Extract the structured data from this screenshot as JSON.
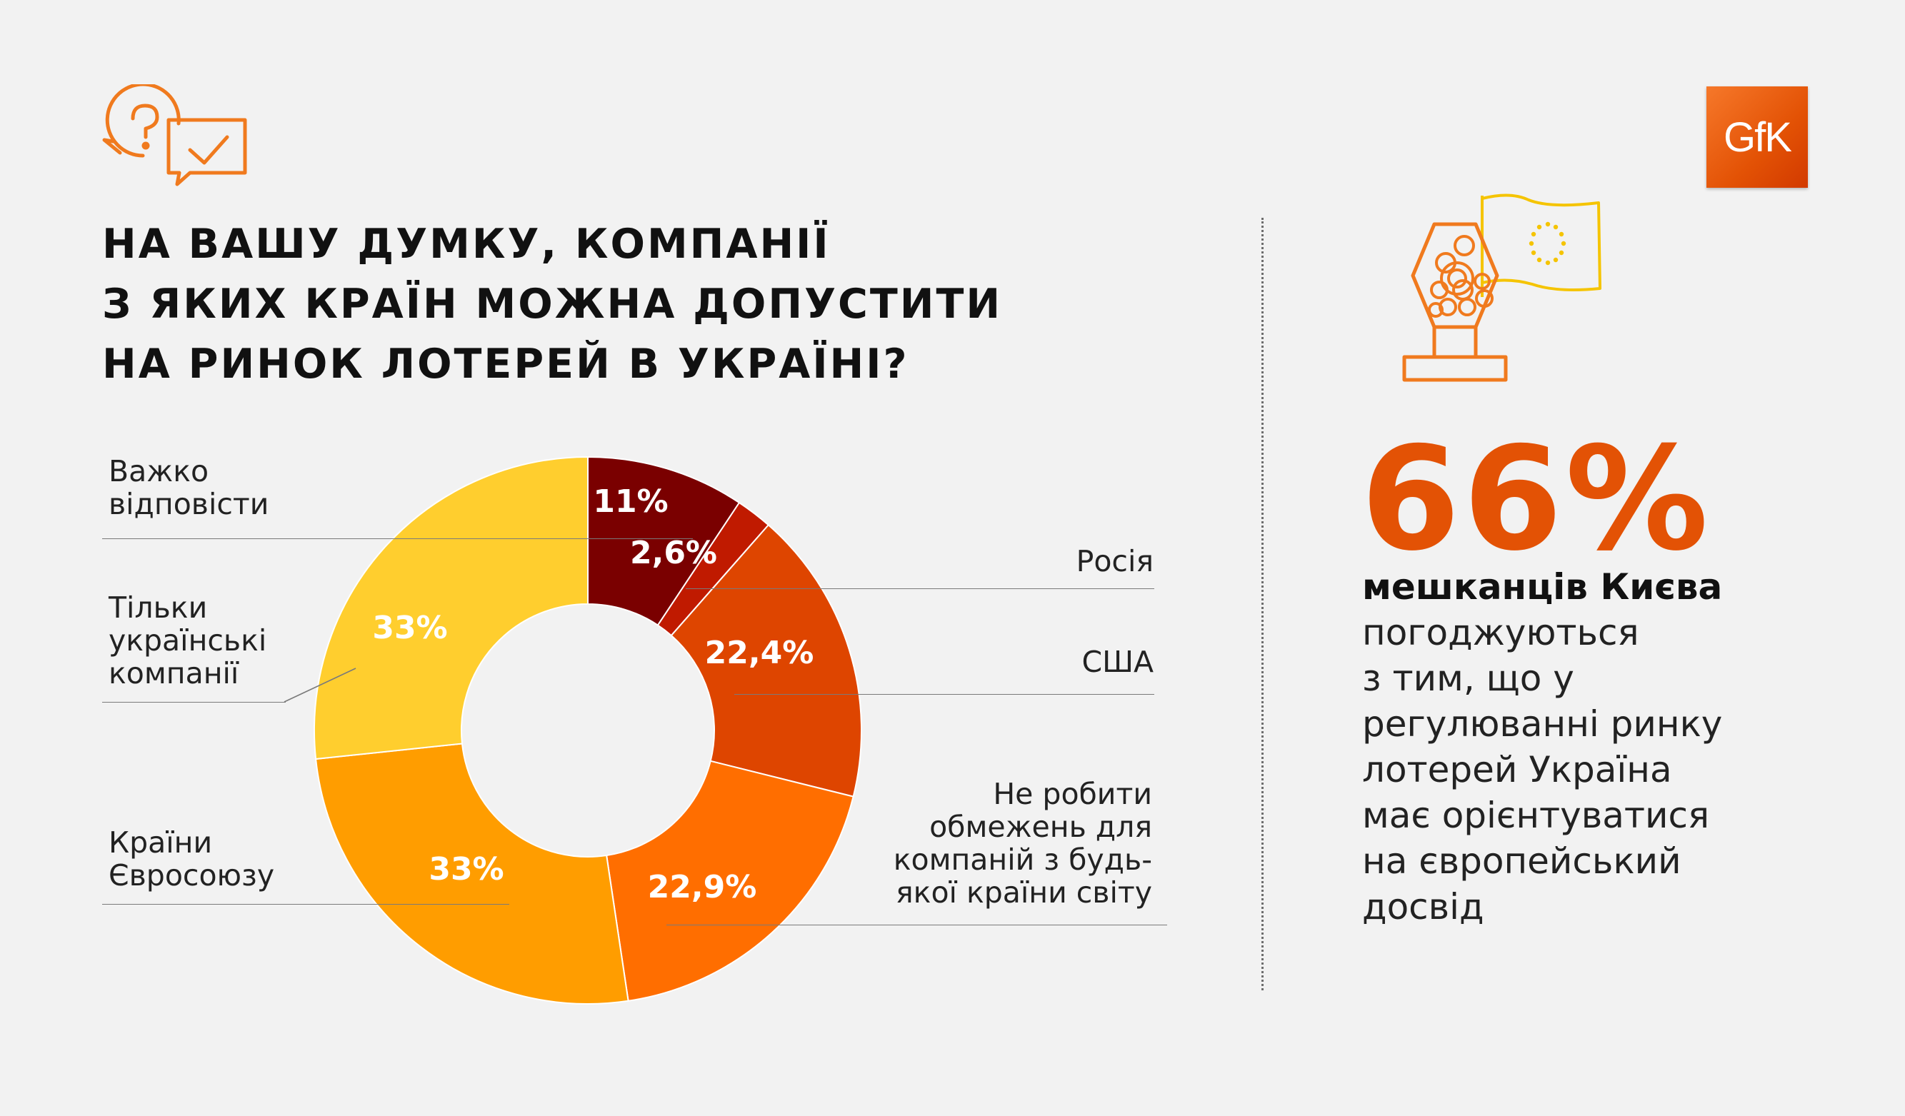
{
  "title_lines": [
    "НА ВАШУ ДУМКУ, КОМПАНІЇ",
    "З ЯКИХ КРАЇН МОЖНА ДОПУСТИТИ",
    "НА РИНОК ЛОТЕРЕЙ В УКРАЇНІ?"
  ],
  "brand": {
    "logo_text": "GfK",
    "accent": "#e35205"
  },
  "icons": {
    "header": "question-answer-chat-icon",
    "lottery": "lottery-drum-eu-flag-icon"
  },
  "labels": {
    "hard": [
      "Важко",
      "відповісти"
    ],
    "ukrainian": [
      "Тільки",
      "українські",
      "компанії"
    ],
    "eu": [
      "Країни",
      "Євросоюзу"
    ],
    "russia": [
      "Росія"
    ],
    "usa": [
      "США"
    ],
    "no_limits": [
      "Не робити",
      "обмежень для",
      "компаній з будь-",
      "якої країни світу"
    ]
  },
  "chart_data": {
    "type": "pie",
    "donut": true,
    "slices": [
      {
        "name": "Важко відповісти",
        "value": 11,
        "label": "11%",
        "color": "#7a0000"
      },
      {
        "name": "Росія",
        "value": 2.6,
        "label": "2,6%",
        "color": "#c01a00"
      },
      {
        "name": "США",
        "value": 22.4,
        "label": "22,4%",
        "color": "#de4500"
      },
      {
        "name": "Не робити обмежень для компаній з будь-якої країни світу",
        "value": 22.9,
        "label": "22,9%",
        "color": "#ff6e00"
      },
      {
        "name": "Країни Євросоюзу",
        "value": 33,
        "label": "33%",
        "color": "#ff9d00"
      },
      {
        "name": "Тільки українські компанії",
        "value": 33,
        "label": "33%",
        "color": "#ffce2e"
      }
    ],
    "display_angles_deg": [
      0,
      33.6,
      41.3,
      104,
      171.5,
      264,
      360
    ]
  },
  "stat": {
    "value": "66%",
    "lines": [
      "мешканців Києва",
      "погоджуються",
      "з тим, що у",
      "регулюванні ринку",
      "лотерей Україна",
      "має орієнтуватися",
      "на європейський",
      "досвід"
    ]
  }
}
